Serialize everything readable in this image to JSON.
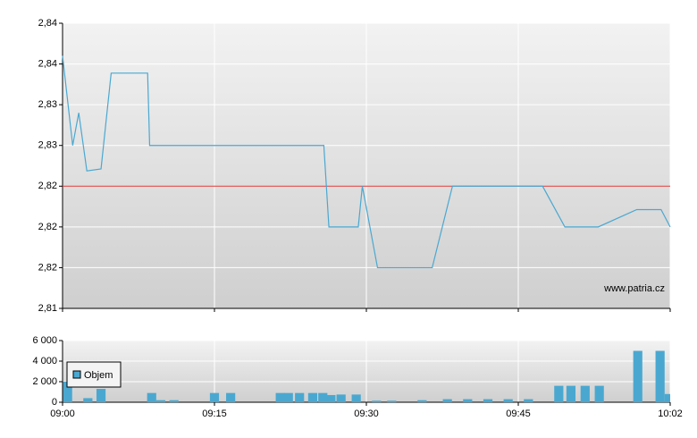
{
  "chart_data": [
    {
      "type": "line",
      "watermark": "www.patria.cz",
      "xlim": [
        0,
        60
      ],
      "xticks": [
        {
          "value": 0,
          "label": "09:00"
        },
        {
          "value": 15,
          "label": "09:15"
        },
        {
          "value": 30,
          "label": "09:30"
        },
        {
          "value": 45,
          "label": "09:45"
        },
        {
          "value": 60,
          "label": "10:02"
        }
      ],
      "ylim": [
        2.812,
        2.84
      ],
      "yticks": [
        {
          "value": 2.812,
          "label": "2,81"
        },
        {
          "value": 2.816,
          "label": "2,82"
        },
        {
          "value": 2.82,
          "label": "2,82"
        },
        {
          "value": 2.824,
          "label": "2,82"
        },
        {
          "value": 2.828,
          "label": "2,83"
        },
        {
          "value": 2.832,
          "label": "2,83"
        },
        {
          "value": 2.836,
          "label": "2,84"
        },
        {
          "value": 2.84,
          "label": "2,84"
        }
      ],
      "reference_line": {
        "value": 2.824,
        "color": "#e03030"
      },
      "grid": true,
      "series": [
        {
          "color": "#4aa8d0",
          "x": [
            0,
            1,
            1.6,
            2.4,
            3.8,
            4.8,
            8.4,
            8.6,
            25.8,
            26.3,
            29.2,
            29.6,
            31.1,
            36.5,
            38.5,
            47.4,
            49.6,
            52.9,
            56.7,
            59.1,
            60
          ],
          "values": [
            2.8368,
            2.828,
            2.8312,
            2.8255,
            2.8257,
            2.8351,
            2.8351,
            2.828,
            2.828,
            2.82,
            2.82,
            2.824,
            2.816,
            2.816,
            2.824,
            2.824,
            2.82,
            2.82,
            2.8217,
            2.8217,
            2.82
          ]
        }
      ]
    },
    {
      "type": "bar",
      "xlim": [
        0,
        60
      ],
      "xticks": [
        {
          "value": 0,
          "label": "09:00"
        },
        {
          "value": 15,
          "label": "09:15"
        },
        {
          "value": 30,
          "label": "09:30"
        },
        {
          "value": 45,
          "label": "09:45"
        },
        {
          "value": 60,
          "label": "10:02"
        }
      ],
      "ylim": [
        0,
        6000
      ],
      "yticks": [
        {
          "value": 0,
          "label": "0"
        },
        {
          "value": 2000,
          "label": "2 000"
        },
        {
          "value": 4000,
          "label": "4 000"
        },
        {
          "value": 6000,
          "label": "6 000"
        }
      ],
      "grid": true,
      "series": [
        {
          "name": "Objem",
          "color": "#4aa8d0",
          "x": [
            0.5,
            2.5,
            3.8,
            8.8,
            9.7,
            11,
            15,
            16.6,
            21.5,
            22.3,
            23.4,
            24.7,
            25.7,
            26.5,
            27.5,
            29,
            31,
            32.5,
            35.5,
            38,
            40,
            42,
            44,
            46,
            49,
            50.2,
            51.6,
            53,
            56.8,
            59,
            59.9
          ],
          "values": [
            2000,
            400,
            1300,
            900,
            200,
            200,
            900,
            900,
            900,
            900,
            900,
            900,
            900,
            700,
            750,
            750,
            150,
            150,
            200,
            300,
            300,
            300,
            300,
            300,
            1600,
            1600,
            1600,
            1600,
            5000,
            5000,
            800
          ]
        }
      ]
    }
  ]
}
